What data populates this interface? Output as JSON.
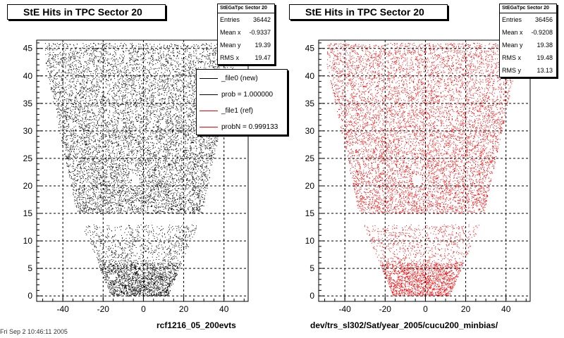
{
  "chart_data": [
    {
      "type": "scatter",
      "title": "StE Hits in TPC Sector 20",
      "xlabel": "rcf1216_05_200evts",
      "marker_color": "#000000",
      "xlim": [
        -53,
        52
      ],
      "ylim": [
        -1,
        46.5
      ],
      "x_ticks": [
        -40,
        -20,
        0,
        20,
        40
      ],
      "y_ticks": [
        0,
        5,
        10,
        15,
        20,
        25,
        30,
        35,
        40,
        45
      ],
      "grid": true,
      "stats": {
        "header": "StEGaTpc Sector 20",
        "rows": [
          {
            "label": "Entries",
            "value": "36442"
          },
          {
            "label": "Mean x",
            "value": "-0.9337"
          },
          {
            "label": "Mean y",
            "value": "19.39"
          },
          {
            "label": "RMS x",
            "value": "19.47"
          }
        ]
      },
      "legend": {
        "placement": "top-right",
        "entries": [
          {
            "label": "_file0 (new)",
            "color": "#000000"
          },
          {
            "label": "prob = 1.000000",
            "color": "#000000"
          },
          {
            "label": "_file1 (ref)",
            "color": "#ff0000"
          },
          {
            "label": "probN = 0.999133",
            "color": "#ff0000"
          }
        ]
      }
    },
    {
      "type": "scatter",
      "title": "StE Hits in TPC Sector 20",
      "xlabel": "dev/trs_sl302/Sat/year_2005/cucu200_minbias/",
      "marker_color": "#ff0000",
      "xlim": [
        -53,
        52
      ],
      "ylim": [
        -1,
        46.5
      ],
      "x_ticks": [
        -40,
        -20,
        0,
        20,
        40
      ],
      "y_ticks": [
        0,
        5,
        10,
        15,
        20,
        25,
        30,
        35,
        40,
        45
      ],
      "grid": true,
      "stats": {
        "header": "StEGaTpc Sector 20",
        "rows": [
          {
            "label": "Entries",
            "value": "36456"
          },
          {
            "label": "Mean x",
            "value": "-0.9208"
          },
          {
            "label": "Mean y",
            "value": "19.38"
          },
          {
            "label": "RMS x",
            "value": "19.48"
          },
          {
            "label": "RMS y",
            "value": "13.13"
          }
        ]
      }
    }
  ],
  "footer": "Fri Sep  2 10:46:11 2005"
}
